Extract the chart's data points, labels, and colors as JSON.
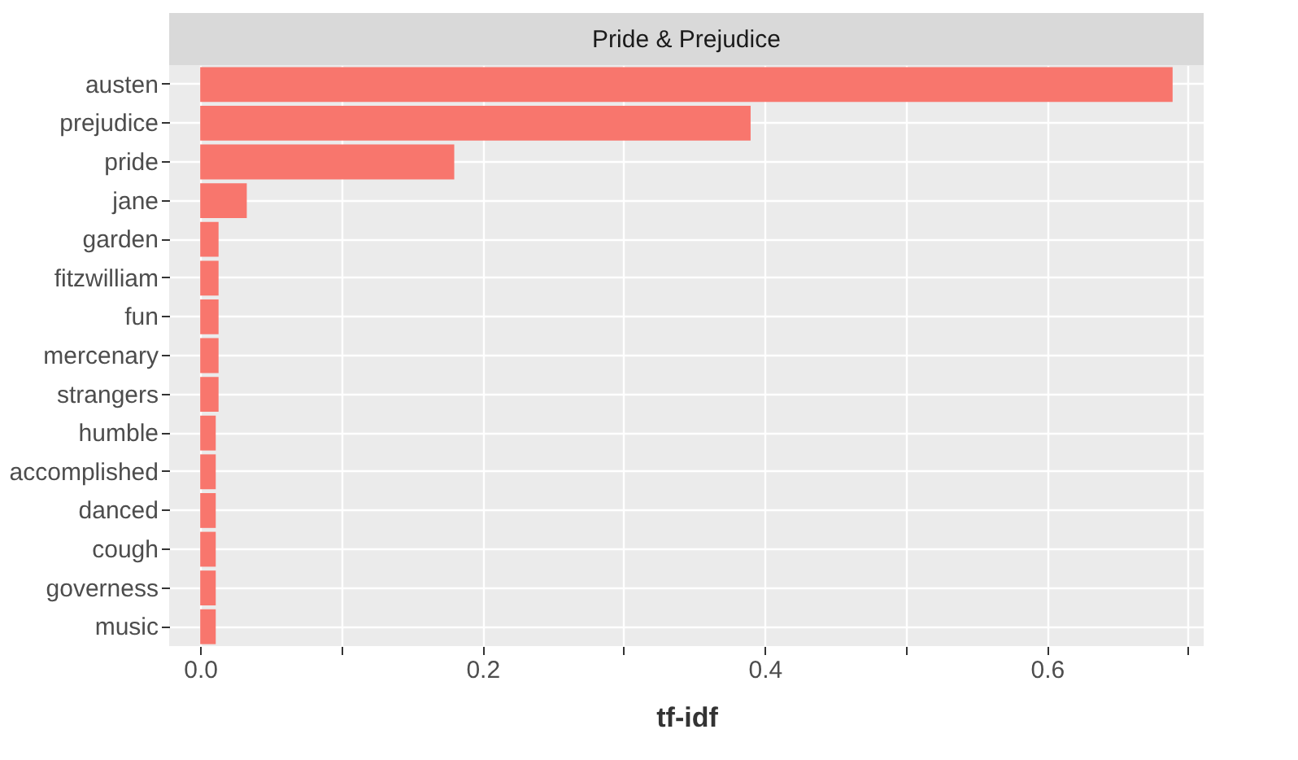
{
  "chart_data": {
    "type": "bar",
    "orientation": "horizontal",
    "title": "Pride & Prejudice",
    "xlabel": "tf-idf",
    "categories": [
      "austen",
      "prejudice",
      "pride",
      "jane",
      "garden",
      "fitzwilliam",
      "fun",
      "mercenary",
      "strangers",
      "humble",
      "accomplished",
      "danced",
      "cough",
      "governess",
      "music"
    ],
    "values": [
      0.689,
      0.39,
      0.18,
      0.033,
      0.013,
      0.013,
      0.013,
      0.013,
      0.013,
      0.011,
      0.011,
      0.011,
      0.011,
      0.011,
      0.011
    ],
    "color": "#f8766d",
    "xlim": [
      -0.022,
      0.711
    ],
    "xticks": [
      {
        "value": 0,
        "label": "0.0"
      },
      {
        "value": 0.1,
        "label": null
      },
      0.2,
      {
        "value": 0.3,
        "label": null
      },
      0.4,
      {
        "value": 0.5,
        "label": null
      },
      0.6,
      {
        "value": 0.7,
        "label": null
      }
    ],
    "grid": true
  }
}
